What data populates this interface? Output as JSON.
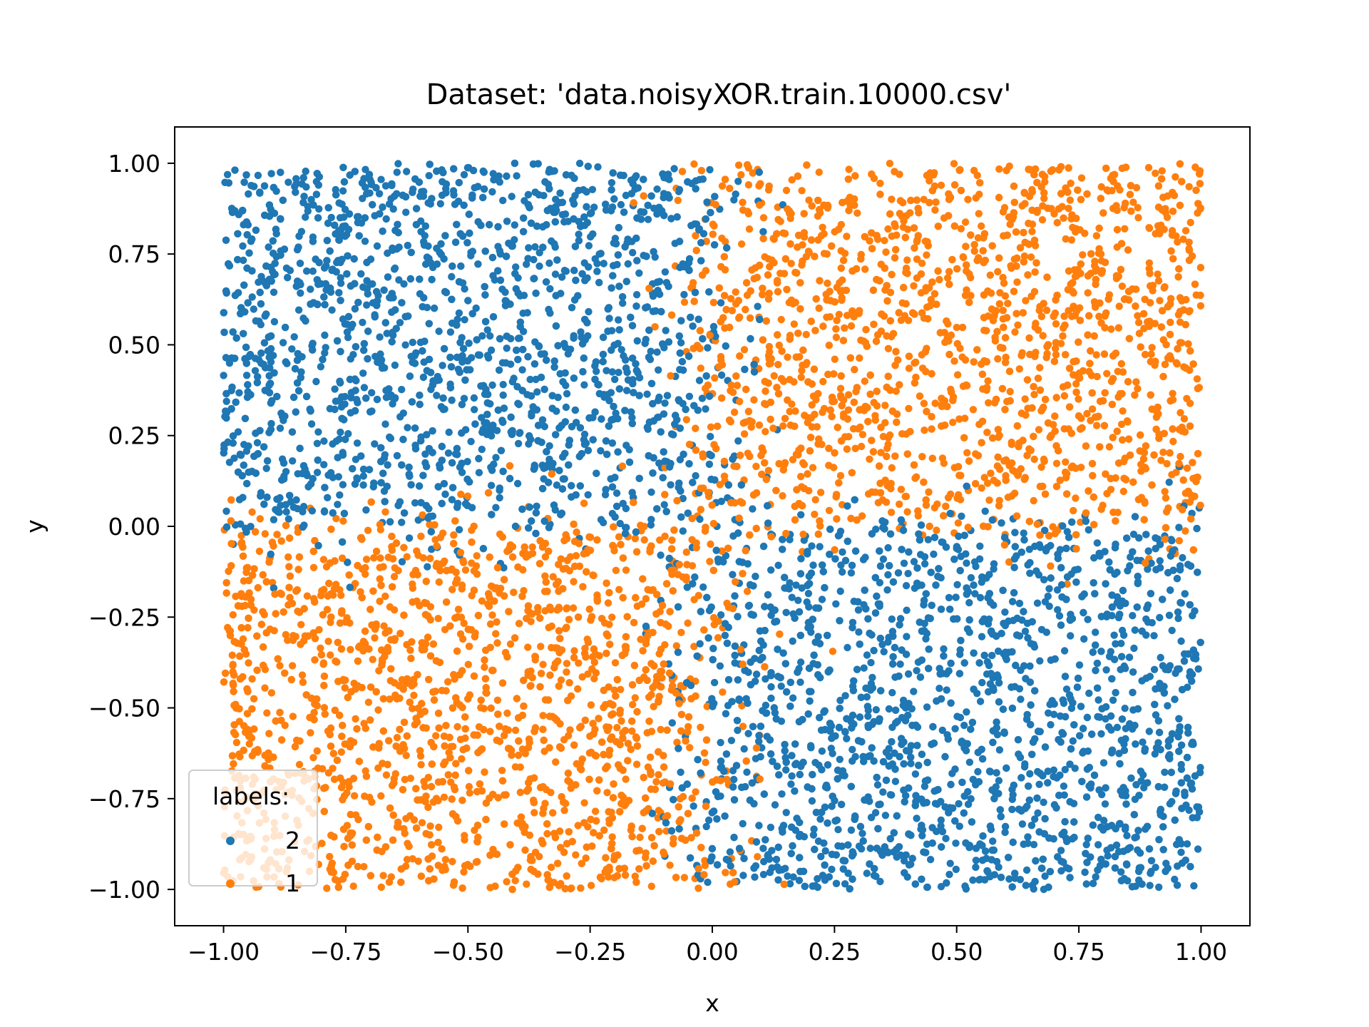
{
  "chart_data": {
    "type": "scatter",
    "title": "Dataset: 'data.noisyXOR.train.10000.csv'",
    "xlabel": "x",
    "ylabel": "y",
    "xlim": [
      -1.1,
      1.1
    ],
    "ylim": [
      -1.1,
      1.1
    ],
    "x_ticks": [
      -1.0,
      -0.75,
      -0.5,
      -0.25,
      0.0,
      0.25,
      0.5,
      0.75,
      1.0
    ],
    "y_ticks": [
      -1.0,
      -0.75,
      -0.5,
      -0.25,
      0.0,
      0.25,
      0.5,
      0.75,
      1.0
    ],
    "x_tick_labels": [
      "−1.00",
      "−0.75",
      "−0.50",
      "−0.25",
      "0.00",
      "0.25",
      "0.50",
      "0.75",
      "1.00"
    ],
    "y_tick_labels": [
      "−1.00",
      "−0.75",
      "−0.50",
      "−0.25",
      "0.00",
      "0.25",
      "0.50",
      "0.75",
      "1.00"
    ],
    "grid": false,
    "legend": {
      "title": "labels:",
      "placement": "lower-left"
    },
    "series": [
      {
        "name": "2",
        "color": "#1f77b4",
        "n_points": 5000,
        "description_rule": "points where x*y < 0 away from the noisy boundary; uniform in [-1,1]^2"
      },
      {
        "name": "1",
        "color": "#ff7f0e",
        "n_points": 5000,
        "description_rule": "points where x*y > 0 away from the noisy boundary; uniform in [-1,1]^2"
      }
    ],
    "points_generation": {
      "domain": [
        -1.0,
        1.0
      ],
      "total": 10000,
      "rule": "label 1 if x*y > 0 else label 2, with label noise near the axes"
    }
  }
}
